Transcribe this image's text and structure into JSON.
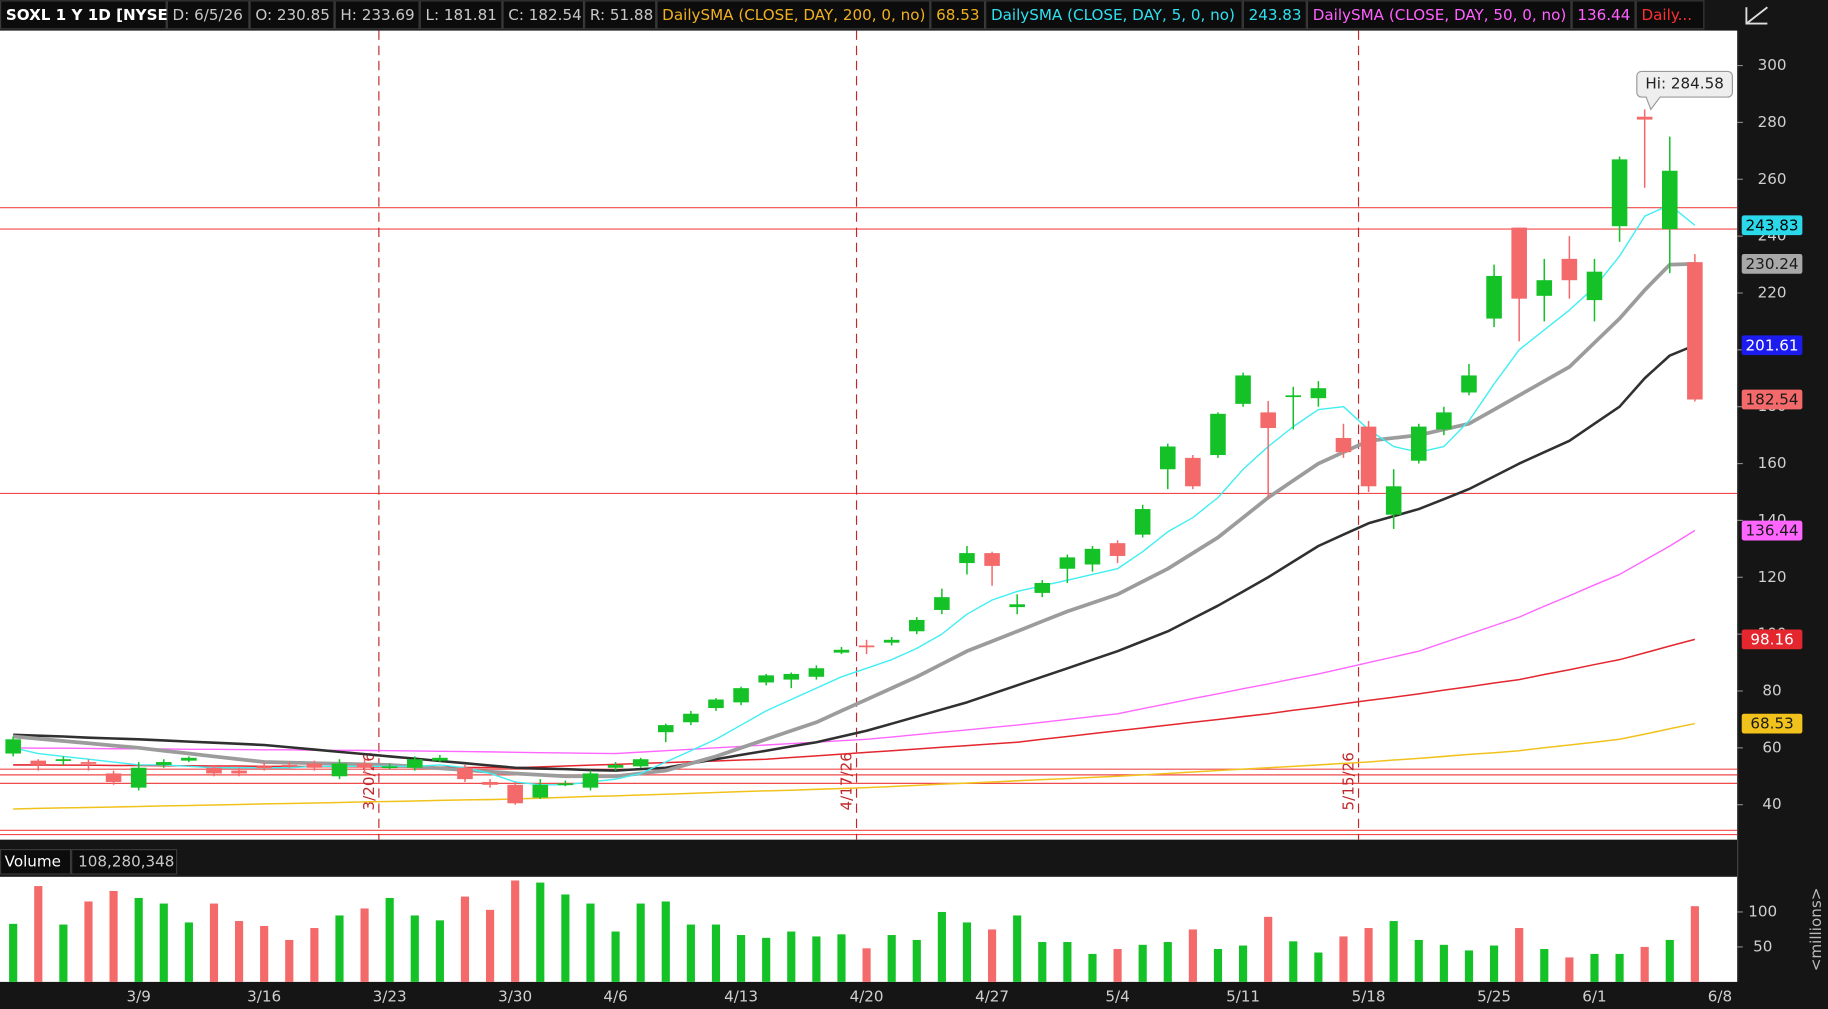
{
  "chart_data": {
    "type": "candlestick",
    "header": [
      {
        "text": "SOXL 1 Y 1D [NYSE]",
        "color": "#ffffff"
      },
      {
        "text": "D: 6/5/26",
        "color": "#c8c8c8"
      },
      {
        "text": "O: 230.85",
        "color": "#c8c8c8"
      },
      {
        "text": "H: 233.69",
        "color": "#c8c8c8"
      },
      {
        "text": "L: 181.81",
        "color": "#c8c8c8"
      },
      {
        "text": "C: 182.54",
        "color": "#c8c8c8"
      },
      {
        "text": "R: 51.88",
        "color": "#c8c8c8"
      },
      {
        "text": "DailySMA (CLOSE, DAY, 200, 0, no)",
        "color": "#f0b020"
      },
      {
        "text": "68.53",
        "color": "#f0b020"
      },
      {
        "text": "DailySMA (CLOSE, DAY, 5, 0, no)",
        "color": "#30e0f0"
      },
      {
        "text": "243.83",
        "color": "#30e0f0"
      },
      {
        "text": "DailySMA (CLOSE, DAY, 50, 0, no)",
        "color": "#ff60ff"
      },
      {
        "text": "136.44",
        "color": "#ff60ff"
      },
      {
        "text": "Daily...",
        "color": "#ff3030"
      }
    ],
    "categories": [
      null,
      null,
      null,
      null,
      null,
      "3/9",
      null,
      null,
      null,
      null,
      "3/16",
      null,
      null,
      null,
      null,
      "3/23",
      null,
      null,
      null,
      null,
      "3/30",
      null,
      null,
      null,
      "4/6",
      null,
      null,
      null,
      null,
      "4/13",
      null,
      null,
      null,
      null,
      "4/20",
      null,
      null,
      null,
      null,
      "4/27",
      null,
      null,
      null,
      null,
      "5/4",
      null,
      null,
      null,
      null,
      "5/11",
      null,
      null,
      null,
      null,
      "5/18",
      null,
      null,
      null,
      null,
      "5/25",
      null,
      null,
      null,
      "6/1",
      null,
      null,
      null,
      null,
      "6/8"
    ],
    "open": [
      58,
      55.5,
      55.5,
      55,
      51,
      46,
      54,
      55.5,
      53,
      52,
      53.5,
      54,
      54.5,
      50,
      54.5,
      53,
      53,
      55.5,
      53,
      48,
      47,
      42.5,
      47,
      46,
      53,
      53.5,
      65.5,
      69,
      74,
      76,
      83,
      84,
      85,
      93.5,
      96,
      97,
      101,
      108.5,
      125,
      128.5,
      109.5,
      114.5,
      123,
      124.5,
      132,
      135,
      158,
      162,
      163,
      181,
      178,
      183.5,
      183,
      169,
      173,
      142,
      161,
      172,
      185,
      211,
      243,
      219,
      232,
      217.5,
      243.5,
      282,
      242.5,
      230.85,
      null
    ],
    "high": [
      64,
      56,
      57,
      56,
      52,
      55,
      56,
      57,
      54,
      53,
      55,
      55,
      55.5,
      56,
      56,
      54.5,
      57,
      57.5,
      54,
      49,
      48,
      49,
      48.5,
      52,
      55,
      56.5,
      68.5,
      73,
      77.5,
      81.5,
      86,
      86.5,
      89,
      95.5,
      98,
      99,
      106,
      116,
      131,
      129,
      114,
      119,
      128,
      131,
      133,
      145.5,
      167,
      163,
      178,
      192,
      182,
      187,
      189,
      174,
      175,
      158,
      174,
      180,
      195,
      230,
      243,
      232,
      240,
      232,
      268,
      284.58,
      275,
      233.69,
      null
    ],
    "low": [
      57,
      52,
      54,
      52,
      47,
      45,
      53,
      55,
      50,
      50,
      52,
      53,
      52,
      49,
      51,
      52.5,
      52,
      55,
      48,
      46,
      40,
      42,
      46.5,
      45,
      52,
      53,
      62,
      68,
      73,
      75,
      82,
      81,
      84,
      93,
      93,
      96,
      100,
      107,
      121,
      117,
      107,
      113,
      118,
      122,
      125,
      134,
      151,
      151,
      162,
      180,
      148,
      172,
      180,
      162,
      150,
      137,
      160,
      170,
      184,
      208,
      203,
      210,
      218,
      210,
      238,
      257,
      227,
      181.81,
      null
    ],
    "close": [
      63,
      54,
      56,
      54.5,
      48,
      53,
      55,
      56.5,
      51,
      51,
      53,
      53.5,
      53,
      54.5,
      53,
      53.5,
      56,
      56.5,
      49,
      47,
      40.5,
      47,
      47.5,
      51,
      54,
      56,
      68,
      72,
      77,
      81,
      85.5,
      86,
      88,
      94.5,
      95.5,
      98,
      105,
      113,
      128.5,
      124,
      110.5,
      118,
      127,
      130,
      127.5,
      144,
      166,
      152,
      177.5,
      191,
      172.5,
      184,
      186.5,
      164,
      152,
      152,
      173,
      178,
      191,
      226,
      218,
      224.5,
      224.5,
      227.5,
      267,
      281,
      263,
      182.54,
      null
    ],
    "up_color": "#14c228",
    "down_color": "#f46a6a",
    "ylim": [
      27.7,
      312.3
    ],
    "yticks": [
      40,
      60,
      80,
      100,
      120,
      140,
      160,
      180,
      200,
      220,
      240,
      260,
      280,
      300
    ],
    "series": [
      {
        "color": "#f2c21c",
        "width": 1.3,
        "values": [
          38.5,
          38.7,
          38.9,
          39,
          39.2,
          39.4,
          39.6,
          39.7,
          39.9,
          40.1,
          40.3,
          40.4,
          40.6,
          40.8,
          41,
          41.1,
          41.3,
          41.5,
          41.7,
          41.8,
          42,
          42.3,
          42.6,
          42.9,
          43.1,
          43.4,
          43.7,
          44,
          44.3,
          44.6,
          44.9,
          45.1,
          45.4,
          45.7,
          46,
          46.4,
          46.8,
          47.2,
          47.6,
          48,
          48.4,
          48.8,
          49.2,
          49.6,
          50,
          50.5,
          51,
          51.5,
          52,
          52.5,
          53,
          53.5,
          54,
          54.5,
          55,
          55.7,
          56.3,
          57,
          57.7,
          58.3,
          59,
          60,
          61,
          62,
          63,
          64.8,
          66.7,
          68.53,
          null
        ]
      },
      {
        "color": "#e4262e",
        "width": 1.3,
        "values": [
          54,
          54,
          53.9,
          53.9,
          53.8,
          53.8,
          53.7,
          53.7,
          53.6,
          53.6,
          53.5,
          53.5,
          53.4,
          53.4,
          53.3,
          53.3,
          53.2,
          53.2,
          53.1,
          53.1,
          53,
          53.3,
          53.6,
          53.9,
          54.2,
          54.5,
          54.8,
          55.1,
          55.4,
          55.7,
          56,
          56.6,
          57.2,
          57.8,
          58.4,
          59,
          59.6,
          60.2,
          60.8,
          61.4,
          62,
          63,
          64,
          65,
          66,
          67,
          68,
          69,
          70,
          71,
          72,
          73.2,
          74.3,
          75.5,
          76.7,
          77.8,
          79,
          80.3,
          81.5,
          82.8,
          84,
          85.8,
          87.5,
          89.3,
          91,
          93.4,
          95.8,
          98.16,
          null
        ]
      },
      {
        "color": "#ff66ff",
        "width": 1.2,
        "values": [
          60,
          59.9,
          59.9,
          59.8,
          59.7,
          59.7,
          59.6,
          59.5,
          59.5,
          59.4,
          59.3,
          59.3,
          59.2,
          59.1,
          59.1,
          59,
          58.9,
          58.8,
          58.7,
          58.6,
          58.4,
          58.3,
          58.2,
          58.1,
          58,
          58.5,
          59,
          59.5,
          60,
          60.5,
          61,
          61.5,
          62,
          62.5,
          63,
          63.8,
          64.7,
          65.5,
          66.3,
          67.2,
          68,
          69,
          70,
          71,
          72,
          73.8,
          75.5,
          77.3,
          79,
          80.8,
          82.5,
          84.3,
          86,
          88,
          90,
          92,
          94,
          97,
          100,
          103,
          106,
          109.8,
          113.5,
          117.3,
          121,
          126,
          131,
          136.44,
          null
        ]
      },
      {
        "color": "#303030",
        "width": 2.2,
        "values": [
          64.6,
          64.3,
          64,
          63.6,
          63.3,
          63,
          62.6,
          62.2,
          61.8,
          61.4,
          61,
          60.2,
          59.4,
          58.6,
          57.8,
          57,
          56.2,
          55.4,
          54.6,
          53.8,
          53,
          52.7,
          52.5,
          52.2,
          52,
          52.5,
          53,
          54.5,
          56,
          57.5,
          59,
          60.5,
          62,
          64,
          66,
          68.5,
          71,
          73.5,
          76,
          79,
          82,
          85,
          88,
          91,
          94,
          97.5,
          101,
          105.5,
          110,
          115,
          120,
          125.5,
          131,
          135,
          139,
          141.5,
          144,
          147.5,
          151,
          155.5,
          160,
          164,
          168,
          174,
          180,
          190,
          198,
          201.61,
          null
        ]
      },
      {
        "color": "#9c9c9c",
        "width": 3.2,
        "values": [
          64,
          63.2,
          62.4,
          61.6,
          60.8,
          60,
          59,
          58,
          57,
          56,
          55,
          54.8,
          54.6,
          54.4,
          54.2,
          54,
          53.4,
          52.8,
          52.2,
          51.6,
          51,
          50.5,
          50,
          50,
          50,
          51,
          52,
          54.5,
          57,
          60,
          63,
          66,
          69,
          73,
          77,
          81,
          85,
          89.5,
          94,
          97.5,
          101,
          104.5,
          108,
          111,
          114,
          118.5,
          123,
          128.5,
          134,
          141,
          148,
          154,
          160,
          164,
          168,
          169,
          170,
          172,
          174,
          179,
          184,
          189,
          194,
          202.5,
          211,
          221,
          230,
          230.24,
          null
        ]
      },
      {
        "color": "#40eef2",
        "width": 1.2,
        "values": [
          60,
          58,
          57,
          56,
          55,
          54,
          54,
          53.5,
          53,
          53,
          53,
          53,
          53.5,
          53.5,
          53.5,
          53.5,
          53.5,
          54,
          53,
          51,
          48,
          47,
          47,
          48,
          49,
          51,
          55,
          59,
          63,
          68,
          73,
          77,
          81,
          85,
          88,
          91,
          95,
          100,
          107,
          112,
          115,
          117,
          119,
          121,
          123,
          129,
          136,
          141,
          148,
          158,
          166,
          173,
          179,
          180,
          172,
          166,
          164,
          166,
          175,
          188,
          200,
          207,
          214,
          222,
          233,
          247,
          251,
          243.83,
          null
        ]
      }
    ],
    "price_levels": [
      250,
      242.5,
      149.5,
      52.5,
      50.5,
      47.5,
      31,
      29.5
    ],
    "level_color": "#f04a4a",
    "events": [
      "3/20/26",
      "4/17/26",
      "5/15/26"
    ],
    "event_color": "#c0282a",
    "annotation": "Hi: 284.58",
    "price_labels": [
      {
        "value": 243.83,
        "color": "#2ad8ea",
        "text_color": "#000000"
      },
      {
        "value": 230.24,
        "color": "#a8a8a8",
        "text_color": "#1a1a1a"
      },
      {
        "value": 201.61,
        "color": "#1c1cf0",
        "text_color": "#ffffff"
      },
      {
        "value": 182.54,
        "color": "#f46a6a",
        "text_color": "#1a1a1a"
      },
      {
        "value": 136.44,
        "color": "#ff66ff",
        "text_color": "#1a1a1a"
      },
      {
        "value": 98.16,
        "color": "#e4262e",
        "text_color": "#ffffff"
      },
      {
        "value": 68.53,
        "color": "#f2c21c",
        "text_color": "#1a1a1a"
      }
    ],
    "volume": {
      "title": "Volume",
      "last": "108,280,348",
      "unit": "<millions>",
      "values": [
        83,
        137,
        82,
        115,
        130,
        120,
        112,
        85,
        112,
        87,
        80,
        60,
        77,
        95,
        105,
        120,
        95,
        88,
        122,
        103,
        145,
        142,
        125,
        112,
        72,
        112,
        115,
        82,
        82,
        67,
        63,
        72,
        65,
        68,
        48,
        67,
        60,
        100,
        85,
        75,
        95,
        57,
        57,
        40,
        47,
        53,
        57,
        75,
        47,
        52,
        93,
        58,
        42,
        65,
        77,
        87,
        60,
        53,
        45,
        52,
        77,
        47,
        35,
        40,
        40,
        50,
        60,
        108.280348,
        null
      ],
      "ylim": [
        0,
        150
      ],
      "yticks": [
        50,
        100
      ]
    }
  }
}
